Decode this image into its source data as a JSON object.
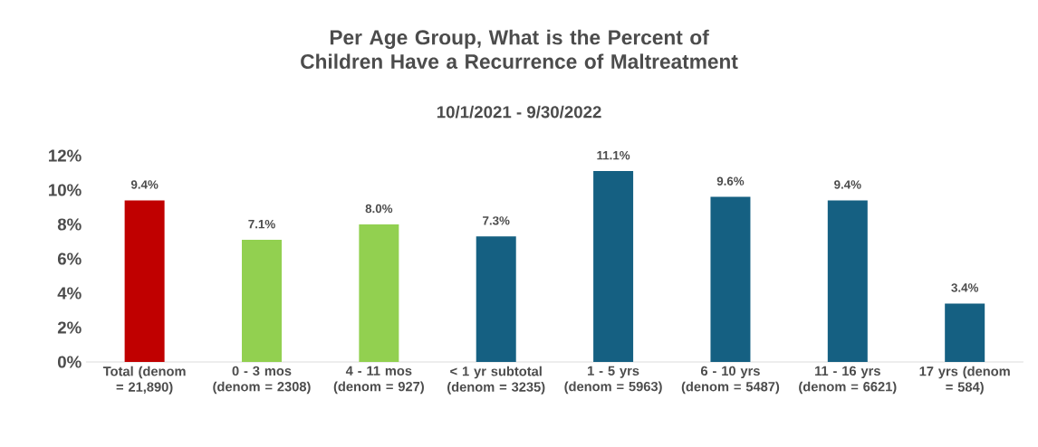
{
  "chart_data": {
    "type": "bar",
    "title": "Per Age Group, What is the Percent of Children Have a Recurrence of Maltreatment",
    "subtitle": "10/1/2021 - 9/30/2022",
    "categories": [
      "Total (denom = 21,890)",
      "0 - 3 mos (denom = 2308)",
      "4 - 11 mos (denom = 927)",
      "< 1 yr subtotal (denom = 3235)",
      "1 - 5 yrs (denom = 5963)",
      "6 - 10 yrs (denom = 5487)",
      "11 - 16 yrs (denom = 6621)",
      "17 yrs (denom = 584)"
    ],
    "values": [
      9.4,
      7.1,
      8.0,
      7.3,
      11.1,
      9.6,
      9.4,
      3.4
    ],
    "value_labels": [
      "9.4%",
      "7.1%",
      "8.0%",
      "7.3%",
      "11.1%",
      "9.6%",
      "9.4%",
      "3.4%"
    ],
    "colors": [
      "#c00000",
      "#92d050",
      "#92d050",
      "#156082",
      "#156082",
      "#156082",
      "#156082",
      "#156082"
    ],
    "ylim": [
      0,
      12
    ],
    "yticks": [
      {
        "value": 0,
        "label": "0%"
      },
      {
        "value": 2,
        "label": "2%"
      },
      {
        "value": 4,
        "label": "4%"
      },
      {
        "value": 6,
        "label": "6%"
      },
      {
        "value": 8,
        "label": "8%"
      },
      {
        "value": 10,
        "label": "10%"
      },
      {
        "value": 12,
        "label": "12%"
      }
    ]
  }
}
